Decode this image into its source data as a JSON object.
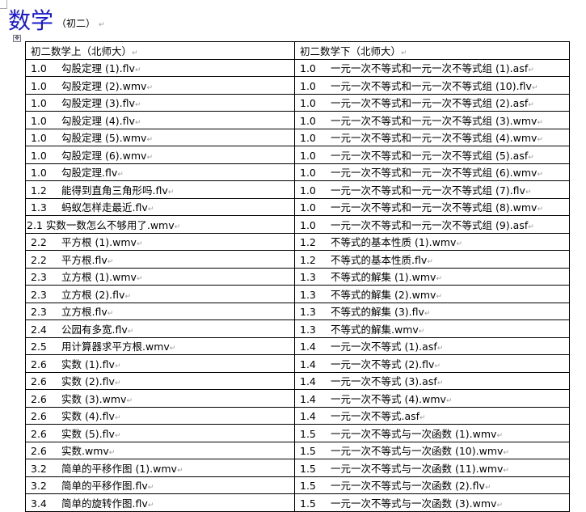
{
  "heading": {
    "title": "数学",
    "subtitle": "（初二）"
  },
  "table": {
    "headers": [
      "初二数学上（北师大）",
      "初二数学下（北师大）"
    ],
    "rows": [
      [
        [
          "1.0",
          "勾股定理 (1).flv"
        ],
        [
          "1.0",
          "一元一次不等式和一元一次不等式组 (1).asf"
        ]
      ],
      [
        [
          "1.0",
          "勾股定理 (2).wmv"
        ],
        [
          "1.0",
          "一元一次不等式和一元一次不等式组 (10).flv"
        ]
      ],
      [
        [
          "1.0",
          "勾股定理 (3).flv"
        ],
        [
          "1.0",
          "一元一次不等式和一元一次不等式组 (2).asf"
        ]
      ],
      [
        [
          "1.0",
          "勾股定理 (4).flv"
        ],
        [
          "1.0",
          "一元一次不等式和一元一次不等式组 (3).wmv"
        ]
      ],
      [
        [
          "1.0",
          "勾股定理 (5).wmv"
        ],
        [
          "1.0",
          "一元一次不等式和一元一次不等式组 (4).wmv"
        ]
      ],
      [
        [
          "1.0",
          "勾股定理 (6).wmv"
        ],
        [
          "1.0",
          "一元一次不等式和一元一次不等式组 (5).asf"
        ]
      ],
      [
        [
          "1.0",
          "勾股定理.flv"
        ],
        [
          "1.0",
          "一元一次不等式和一元一次不等式组 (6).wmv"
        ]
      ],
      [
        [
          "1.2",
          "能得到直角三角形吗.flv"
        ],
        [
          "1.0",
          "一元一次不等式和一元一次不等式组 (7).flv"
        ]
      ],
      [
        [
          "1.3",
          "蚂蚁怎样走最近.flv"
        ],
        [
          "1.0",
          "一元一次不等式和一元一次不等式组 (8).wmv"
        ]
      ],
      [
        [
          "",
          "2.1 实数一数怎么不够用了.wmv"
        ],
        [
          "1.0",
          "一元一次不等式和一元一次不等式组 (9).asf"
        ]
      ],
      [
        [
          "2.2",
          "平方根 (1).wmv"
        ],
        [
          "1.2",
          "不等式的基本性质 (1).wmv"
        ]
      ],
      [
        [
          "2.2",
          "平方根.flv"
        ],
        [
          "1.2",
          "不等式的基本性质.flv"
        ]
      ],
      [
        [
          "2.3",
          "立方根 (1).wmv"
        ],
        [
          "1.3",
          "不等式的解集 (1).wmv"
        ]
      ],
      [
        [
          "2.3",
          "立方根 (2).flv"
        ],
        [
          "1.3",
          "不等式的解集 (2).wmv"
        ]
      ],
      [
        [
          "2.3",
          "立方根.flv"
        ],
        [
          "1.3",
          "不等式的解集 (3).flv"
        ]
      ],
      [
        [
          "2.4",
          "公园有多宽.flv"
        ],
        [
          "1.3",
          "不等式的解集.wmv"
        ]
      ],
      [
        [
          "2.5",
          "用计算器求平方根.wmv"
        ],
        [
          "1.4",
          "一元一次不等式 (1).asf"
        ]
      ],
      [
        [
          "2.6",
          "实数 (1).flv"
        ],
        [
          "1.4",
          "一元一次不等式 (2).flv"
        ]
      ],
      [
        [
          "2.6",
          "实数 (2).flv"
        ],
        [
          "1.4",
          "一元一次不等式 (3).asf"
        ]
      ],
      [
        [
          "2.6",
          "实数 (3).wmv"
        ],
        [
          "1.4",
          "一元一次不等式 (4).wmv"
        ]
      ],
      [
        [
          "2.6",
          "实数 (4).flv"
        ],
        [
          "1.4",
          "一元一次不等式.asf"
        ]
      ],
      [
        [
          "2.6",
          "实数 (5).flv"
        ],
        [
          "1.5",
          "一元一次不等式与一次函数 (1).wmv"
        ]
      ],
      [
        [
          "2.6",
          "实数.wmv"
        ],
        [
          "1.5",
          "一元一次不等式与一次函数 (10).wmv"
        ]
      ],
      [
        [
          "3.2",
          "简单的平移作图 (1).wmv"
        ],
        [
          "1.5",
          "一元一次不等式与一次函数 (11).wmv"
        ]
      ],
      [
        [
          "3.2",
          "简单的平移作图.flv"
        ],
        [
          "1.5",
          "一元一次不等式与一次函数 (2).flv"
        ]
      ],
      [
        [
          "3.4",
          "简单的旋转作图.flv"
        ],
        [
          "1.5",
          "一元一次不等式与一次函数 (3).wmv"
        ]
      ]
    ]
  },
  "marks": {
    "paragraph": "↵",
    "move_handle": "✥"
  }
}
